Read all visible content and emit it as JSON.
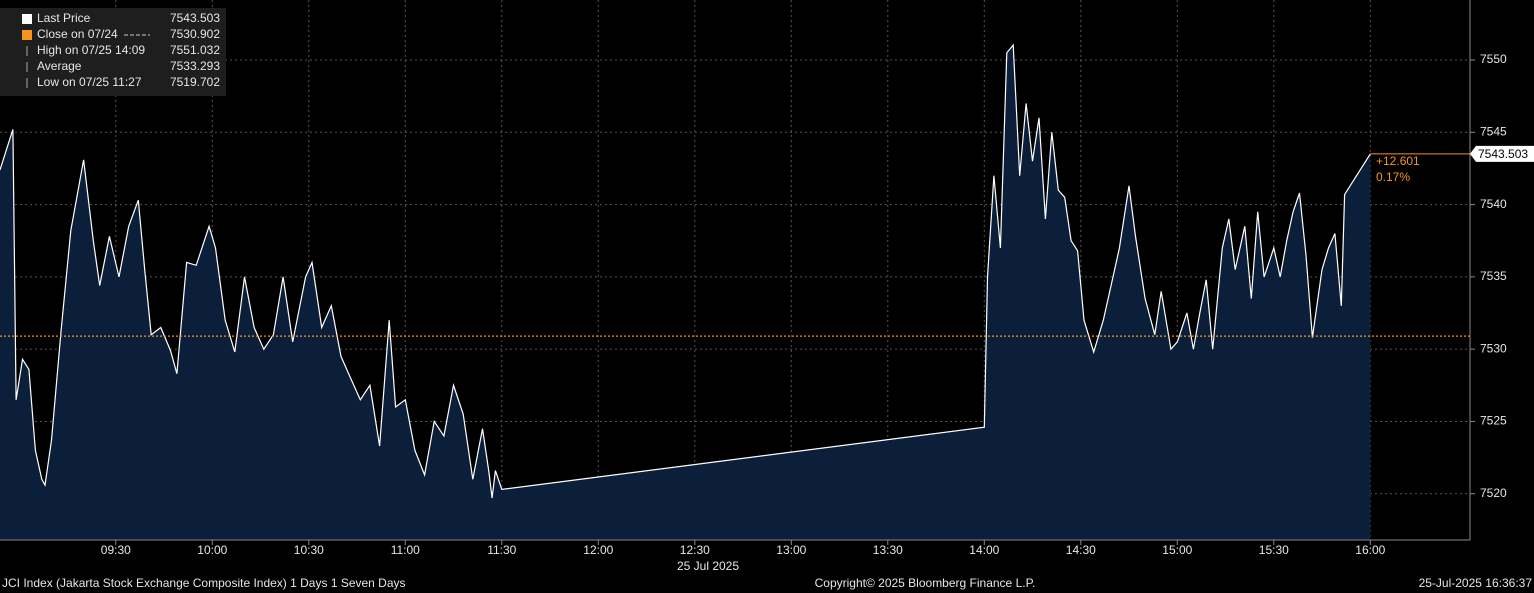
{
  "chart_data": {
    "type": "line",
    "x": [
      "08:54",
      "08:58",
      "08:59",
      "09:01",
      "09:03",
      "09:05",
      "09:07",
      "09:08",
      "09:10",
      "09:13",
      "09:16",
      "09:20",
      "09:23",
      "09:25",
      "09:28",
      "09:31",
      "09:34",
      "09:37",
      "09:39",
      "09:41",
      "09:44",
      "09:47",
      "09:49",
      "09:52",
      "09:55",
      "09:59",
      "10:01",
      "10:04",
      "10:07",
      "10:10",
      "10:13",
      "10:16",
      "10:19",
      "10:22",
      "10:25",
      "10:29",
      "10:31",
      "10:34",
      "10:37",
      "10:40",
      "10:43",
      "10:46",
      "10:49",
      "10:52",
      "10:55",
      "10:57",
      "11:00",
      "11:03",
      "11:06",
      "11:09",
      "11:12",
      "11:15",
      "11:18",
      "11:21",
      "11:24",
      "11:26",
      "11:27",
      "11:28",
      "11:30",
      "14:00",
      "14:01",
      "14:03",
      "14:05",
      "14:07",
      "14:09",
      "14:11",
      "14:13",
      "14:15",
      "14:17",
      "14:19",
      "14:21",
      "14:23",
      "14:25",
      "14:27",
      "14:29",
      "14:31",
      "14:34",
      "14:37",
      "14:40",
      "14:42",
      "14:45",
      "14:47",
      "14:50",
      "14:53",
      "14:55",
      "14:58",
      "15:00",
      "15:03",
      "15:05",
      "15:07",
      "15:09",
      "15:11",
      "15:14",
      "15:16",
      "15:18",
      "15:21",
      "15:23",
      "15:25",
      "15:27",
      "15:30",
      "15:32",
      "15:34",
      "15:36",
      "15:38",
      "15:40",
      "15:42",
      "15:45",
      "15:47",
      "15:49",
      "15:51",
      "15:52",
      "16:00"
    ],
    "series": [
      {
        "name": "Last Price",
        "color": "#ffffff",
        "values": [
          7542.4,
          7545.2,
          7526.5,
          7529.3,
          7528.6,
          7523.0,
          7521.0,
          7520.6,
          7523.7,
          7531.3,
          7538.2,
          7543.1,
          7537.5,
          7534.4,
          7537.8,
          7535.0,
          7538.5,
          7540.3,
          7535.5,
          7531.0,
          7531.5,
          7529.9,
          7528.3,
          7536.0,
          7535.8,
          7538.5,
          7537.0,
          7532.0,
          7529.8,
          7535.0,
          7531.5,
          7530.0,
          7531.0,
          7535.0,
          7530.5,
          7535.0,
          7536.0,
          7531.5,
          7533.0,
          7529.5,
          7528.0,
          7526.5,
          7527.5,
          7523.3,
          7532.0,
          7526.0,
          7526.5,
          7523.0,
          7521.3,
          7525.0,
          7524.0,
          7527.5,
          7525.5,
          7521.0,
          7524.5,
          7521.5,
          7519.702,
          7521.6,
          7520.3,
          7524.6,
          7535.0,
          7542.0,
          7537.0,
          7550.5,
          7551.032,
          7542.0,
          7547.0,
          7543.0,
          7546.0,
          7539.0,
          7545.0,
          7541.0,
          7540.5,
          7537.5,
          7536.8,
          7532.0,
          7529.8,
          7532.0,
          7535.0,
          7537.0,
          7541.3,
          7537.8,
          7533.5,
          7531.0,
          7534.0,
          7530.0,
          7530.5,
          7532.5,
          7530.0,
          7532.5,
          7534.8,
          7530.0,
          7537.0,
          7539.0,
          7535.5,
          7538.5,
          7533.5,
          7539.5,
          7535.0,
          7537.0,
          7535.0,
          7537.5,
          7539.5,
          7540.8,
          7536.5,
          7530.8,
          7535.5,
          7537.0,
          7538.0,
          7533.0,
          7540.7,
          7543.503
        ]
      }
    ],
    "area_color": "#0b1f3a",
    "xlim": [
      "08:54",
      "16:31"
    ],
    "xticks": [
      "09:30",
      "10:00",
      "10:30",
      "11:00",
      "11:30",
      "12:00",
      "12:30",
      "13:00",
      "13:30",
      "14:00",
      "14:30",
      "15:00",
      "15:30",
      "16:00"
    ],
    "date_label": "25 Jul 2025",
    "ylim": [
      7516.8,
      7554.15
    ],
    "yticks": [
      7520,
      7525,
      7530,
      7535,
      7540,
      7545,
      7550
    ],
    "grid": true,
    "legend": [
      {
        "label": "Last Price",
        "value": 7543.503,
        "color": "#ffffff"
      },
      {
        "label": "Close on 07/24",
        "value": 7530.902,
        "color": "#f7941d"
      },
      {
        "label": "High on 07/25 14:09",
        "value": 7551.032,
        "color": "#aaaaaa"
      },
      {
        "label": "Average",
        "value": 7533.293,
        "color": "#aaaaaa"
      },
      {
        "label": "Low on 07/25 11:27",
        "value": 7519.702,
        "color": "#aaaaaa"
      }
    ],
    "change": "+12.601",
    "change_pct": "0.17%",
    "footer": {
      "left": "JCI Index (Jakarta Stock Exchange Composite Index) 1 Days 1 Seven Days",
      "center": "Copyright© 2025 Bloomberg Finance L.P.",
      "right": "25-Jul-2025 16:36:37"
    }
  }
}
